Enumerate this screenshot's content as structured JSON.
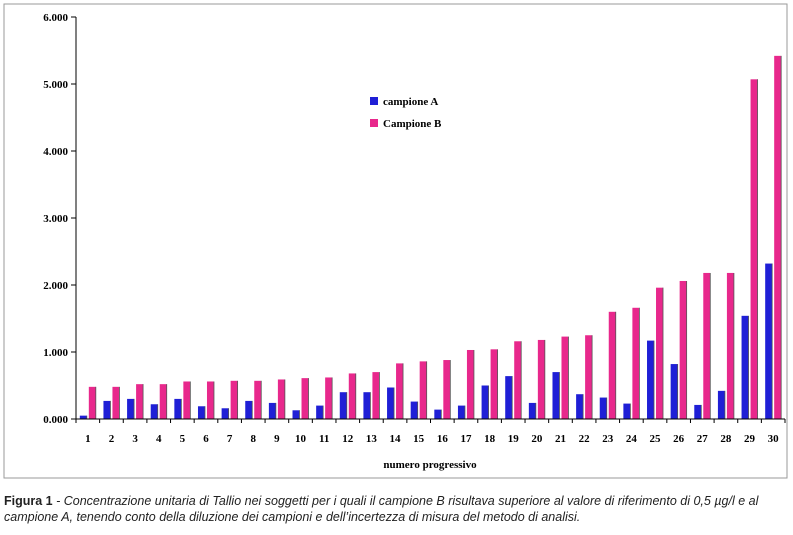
{
  "chart_data": {
    "type": "bar",
    "xlabel": "numero progressivo",
    "ylabel": "",
    "ylim": [
      0,
      6000
    ],
    "yticks": [
      0,
      1000,
      2000,
      3000,
      4000,
      5000,
      6000
    ],
    "ytick_labels": [
      "0.000",
      "1.000",
      "2.000",
      "3.000",
      "4.000",
      "5.000",
      "6.000"
    ],
    "categories": [
      "1",
      "2",
      "3",
      "4",
      "5",
      "6",
      "7",
      "8",
      "9",
      "10",
      "11",
      "12",
      "13",
      "14",
      "15",
      "16",
      "17",
      "18",
      "19",
      "20",
      "21",
      "22",
      "23",
      "24",
      "25",
      "26",
      "27",
      "28",
      "29",
      "30"
    ],
    "series": [
      {
        "name": "campione A",
        "color": "#1f1fd6",
        "values": [
          50,
          270,
          300,
          220,
          300,
          190,
          160,
          270,
          240,
          130,
          200,
          400,
          400,
          470,
          260,
          140,
          200,
          500,
          640,
          240,
          700,
          370,
          320,
          230,
          1170,
          820,
          210,
          420,
          1540,
          2320
        ]
      },
      {
        "name": "Campione B",
        "color": "#e8288c",
        "values": [
          480,
          480,
          520,
          520,
          560,
          560,
          570,
          570,
          590,
          610,
          620,
          680,
          700,
          830,
          860,
          880,
          1030,
          1040,
          1160,
          1180,
          1230,
          1250,
          1600,
          1660,
          1960,
          2060,
          2180,
          2180,
          5070,
          5420
        ]
      }
    ],
    "legend_position": "top-center"
  },
  "caption": {
    "label": "Figura 1",
    "text": " - Concentrazione unitaria di Tallio nei soggetti per i quali il campione B risultava superiore al valore di riferimento di 0,5 µg/l e al campione A, tenendo conto della diluzione dei campioni e dell’incertezza di misura del metodo di analisi."
  }
}
